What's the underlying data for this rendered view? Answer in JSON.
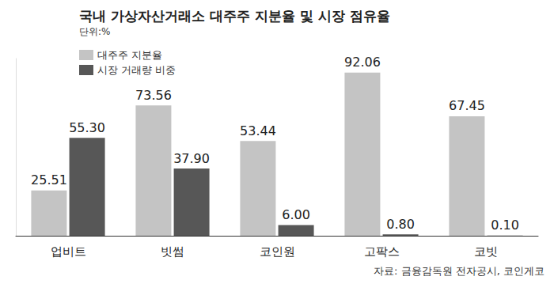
{
  "chart_data": {
    "type": "bar",
    "title": "국내 가상자산거래소 대주주 지분율 및 시장 점유율",
    "subtitle": "단위:%",
    "source": "자료: 금융감독원 전자공시, 코인게코",
    "categories": [
      "업비트",
      "빗썸",
      "코인원",
      "고팍스",
      "코빗"
    ],
    "series": [
      {
        "name": "대주주 지분율",
        "color": "#c4c4c4",
        "values": [
          25.51,
          73.56,
          53.44,
          92.06,
          67.45
        ]
      },
      {
        "name": "시장 거래량 비중",
        "color": "#575757",
        "values": [
          55.3,
          37.9,
          6.0,
          0.8,
          0.1
        ],
        "value_labels": [
          "55.30",
          "37.90",
          "6.00",
          "0.80",
          "0.10"
        ]
      }
    ],
    "ylim": [
      0,
      100
    ],
    "data_labels": true,
    "tick_labels": "x",
    "grid": false,
    "legend": "top-left"
  }
}
